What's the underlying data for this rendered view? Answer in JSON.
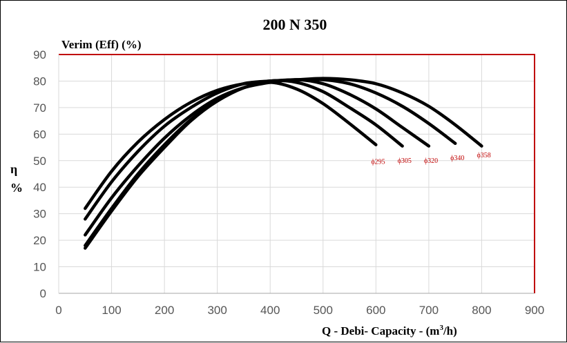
{
  "chart_data": {
    "type": "line",
    "title": "200 N 350",
    "ylabel_top": "Verim (Eff) (%)",
    "ylabel_side_1": "η",
    "ylabel_side_2": "%",
    "xlabel_main": "Q - Debi- Capacity - (m",
    "xlabel_sup": "3",
    "xlabel_end": "/h)",
    "xlim": [
      0,
      900
    ],
    "ylim": [
      0,
      90
    ],
    "xticks": [
      0,
      100,
      200,
      300,
      400,
      500,
      600,
      700,
      800,
      900
    ],
    "yticks": [
      0,
      10,
      20,
      30,
      40,
      50,
      60,
      70,
      80,
      90
    ],
    "grid": true,
    "colors": {
      "curve": "#000000",
      "axis_frame": "#c00000",
      "grid": "#d9d9d9",
      "label": "#c00000"
    },
    "series": [
      {
        "name": "ϕ295",
        "x": [
          50,
          100,
          150,
          200,
          250,
          300,
          350,
          400,
          450,
          500,
          550,
          600
        ],
        "y": [
          17,
          31,
          44,
          55,
          65,
          72.5,
          77.5,
          79.5,
          77,
          71.5,
          64,
          56
        ]
      },
      {
        "name": "ϕ305",
        "x": [
          50,
          100,
          150,
          200,
          250,
          300,
          350,
          400,
          450,
          500,
          550,
          600,
          650
        ],
        "y": [
          18,
          32,
          45,
          56,
          65.5,
          72.5,
          77.5,
          80,
          79.5,
          76,
          70,
          63.5,
          55.5
        ]
      },
      {
        "name": "ϕ320",
        "x": [
          50,
          100,
          150,
          200,
          250,
          300,
          350,
          400,
          450,
          500,
          550,
          600,
          650,
          700
        ],
        "y": [
          22,
          36,
          48,
          58.5,
          67,
          73.5,
          77.5,
          79.5,
          80.5,
          79,
          75,
          69.5,
          62.5,
          55.5
        ]
      },
      {
        "name": "ϕ340",
        "x": [
          50,
          100,
          150,
          200,
          250,
          300,
          350,
          400,
          450,
          500,
          550,
          600,
          650,
          700,
          750
        ],
        "y": [
          28,
          42,
          53.5,
          63,
          70,
          75.5,
          79,
          80,
          80.5,
          80.5,
          79,
          75.5,
          70.5,
          64,
          56.5
        ]
      },
      {
        "name": "ϕ358",
        "x": [
          50,
          100,
          150,
          200,
          250,
          300,
          350,
          400,
          450,
          500,
          550,
          600,
          650,
          700,
          750,
          800
        ],
        "y": [
          32,
          46,
          57,
          65.5,
          72,
          76.5,
          79,
          80,
          80.5,
          81,
          80.5,
          79,
          75.5,
          70.5,
          63.5,
          55.5
        ]
      }
    ],
    "curve_labels": [
      {
        "text": "ϕ295",
        "x": 600,
        "y": 49.5
      },
      {
        "text": "ϕ305",
        "x": 650,
        "y": 50
      },
      {
        "text": "ϕ320",
        "x": 700,
        "y": 50
      },
      {
        "text": "ϕ340",
        "x": 750,
        "y": 51
      },
      {
        "text": "ϕ358",
        "x": 800,
        "y": 52
      }
    ]
  }
}
